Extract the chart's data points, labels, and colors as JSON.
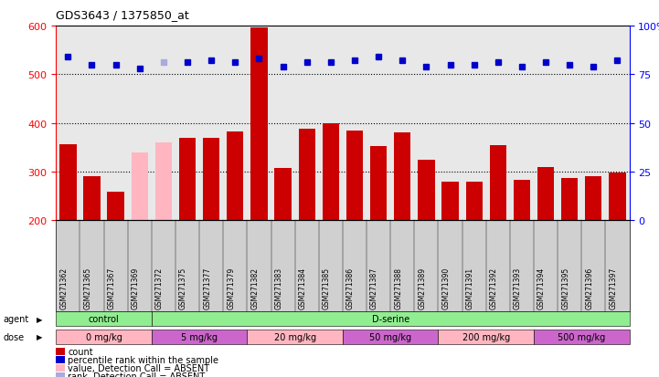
{
  "title": "GDS3643 / 1375850_at",
  "samples": [
    "GSM271362",
    "GSM271365",
    "GSM271367",
    "GSM271369",
    "GSM271372",
    "GSM271375",
    "GSM271377",
    "GSM271379",
    "GSM271382",
    "GSM271383",
    "GSM271384",
    "GSM271385",
    "GSM271386",
    "GSM271387",
    "GSM271388",
    "GSM271389",
    "GSM271390",
    "GSM271391",
    "GSM271392",
    "GSM271393",
    "GSM271394",
    "GSM271395",
    "GSM271396",
    "GSM271397"
  ],
  "counts": [
    357,
    291,
    258,
    340,
    360,
    370,
    370,
    382,
    597,
    307,
    388,
    399,
    385,
    352,
    380,
    325,
    280,
    280,
    355,
    283,
    310,
    287,
    290,
    298
  ],
  "absent_count": [
    false,
    false,
    false,
    true,
    true,
    false,
    false,
    false,
    false,
    false,
    false,
    false,
    false,
    false,
    false,
    false,
    false,
    false,
    false,
    false,
    false,
    false,
    false,
    false
  ],
  "percentile_ranks": [
    84,
    80,
    80,
    78,
    81,
    81,
    82,
    81,
    83,
    79,
    81,
    81,
    82,
    84,
    82,
    79,
    80,
    80,
    81,
    79,
    81,
    80,
    79,
    82
  ],
  "absent_rank": [
    false,
    false,
    false,
    false,
    true,
    false,
    false,
    false,
    false,
    false,
    false,
    false,
    false,
    false,
    false,
    false,
    false,
    false,
    false,
    false,
    false,
    false,
    false,
    false
  ],
  "agent_groups": [
    {
      "label": "control",
      "count": 4,
      "color": "#90EE90"
    },
    {
      "label": "D-serine",
      "count": 20,
      "color": "#90EE90"
    }
  ],
  "dose_groups": [
    {
      "label": "0 mg/kg",
      "count": 4,
      "color": "#FFB6C1"
    },
    {
      "label": "5 mg/kg",
      "count": 4,
      "color": "#CC66CC"
    },
    {
      "label": "20 mg/kg",
      "count": 4,
      "color": "#FFB6C1"
    },
    {
      "label": "50 mg/kg",
      "count": 4,
      "color": "#CC66CC"
    },
    {
      "label": "200 mg/kg",
      "count": 4,
      "color": "#FFB6C1"
    },
    {
      "label": "500 mg/kg",
      "count": 4,
      "color": "#CC66CC"
    }
  ],
  "bar_color_normal": "#CC0000",
  "bar_color_absent": "#FFB6C1",
  "dot_color_normal": "#0000CC",
  "dot_color_absent": "#AAAADD",
  "ylim_left": [
    200,
    600
  ],
  "ylim_right": [
    0,
    100
  ],
  "yticks_left": [
    200,
    300,
    400,
    500,
    600
  ],
  "yticks_right": [
    0,
    25,
    50,
    75,
    100
  ],
  "gridlines": [
    300,
    400,
    500
  ],
  "plot_bg_color": "#E8E8E8"
}
